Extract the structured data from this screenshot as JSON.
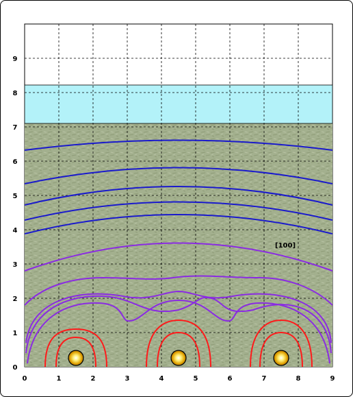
{
  "diagram": {
    "x_ticks": [
      "0",
      "1",
      "2",
      "3",
      "4",
      "5",
      "6",
      "7",
      "8",
      "9"
    ],
    "y_ticks": [
      "0",
      "1",
      "2",
      "3",
      "4",
      "5",
      "6",
      "7",
      "8",
      "9"
    ],
    "annotation": "[100]",
    "domain": {
      "x": [
        0,
        9
      ],
      "y": [
        0,
        10
      ]
    },
    "water_layer": {
      "y_bottom": 7.05,
      "y_top": 8.2,
      "color": "#b3f2f9"
    },
    "soil_layer": {
      "y_bottom": 0,
      "y_top": 7.05,
      "color": "#a3b08e"
    },
    "sources": [
      {
        "x": 1.5,
        "y": 0.25
      },
      {
        "x": 4.5,
        "y": 0.25
      },
      {
        "x": 7.5,
        "y": 0.25
      }
    ],
    "contour_colors": {
      "red": "#ff1a1a",
      "purple": "#8a2be2",
      "blue": "#1a1acc"
    }
  }
}
